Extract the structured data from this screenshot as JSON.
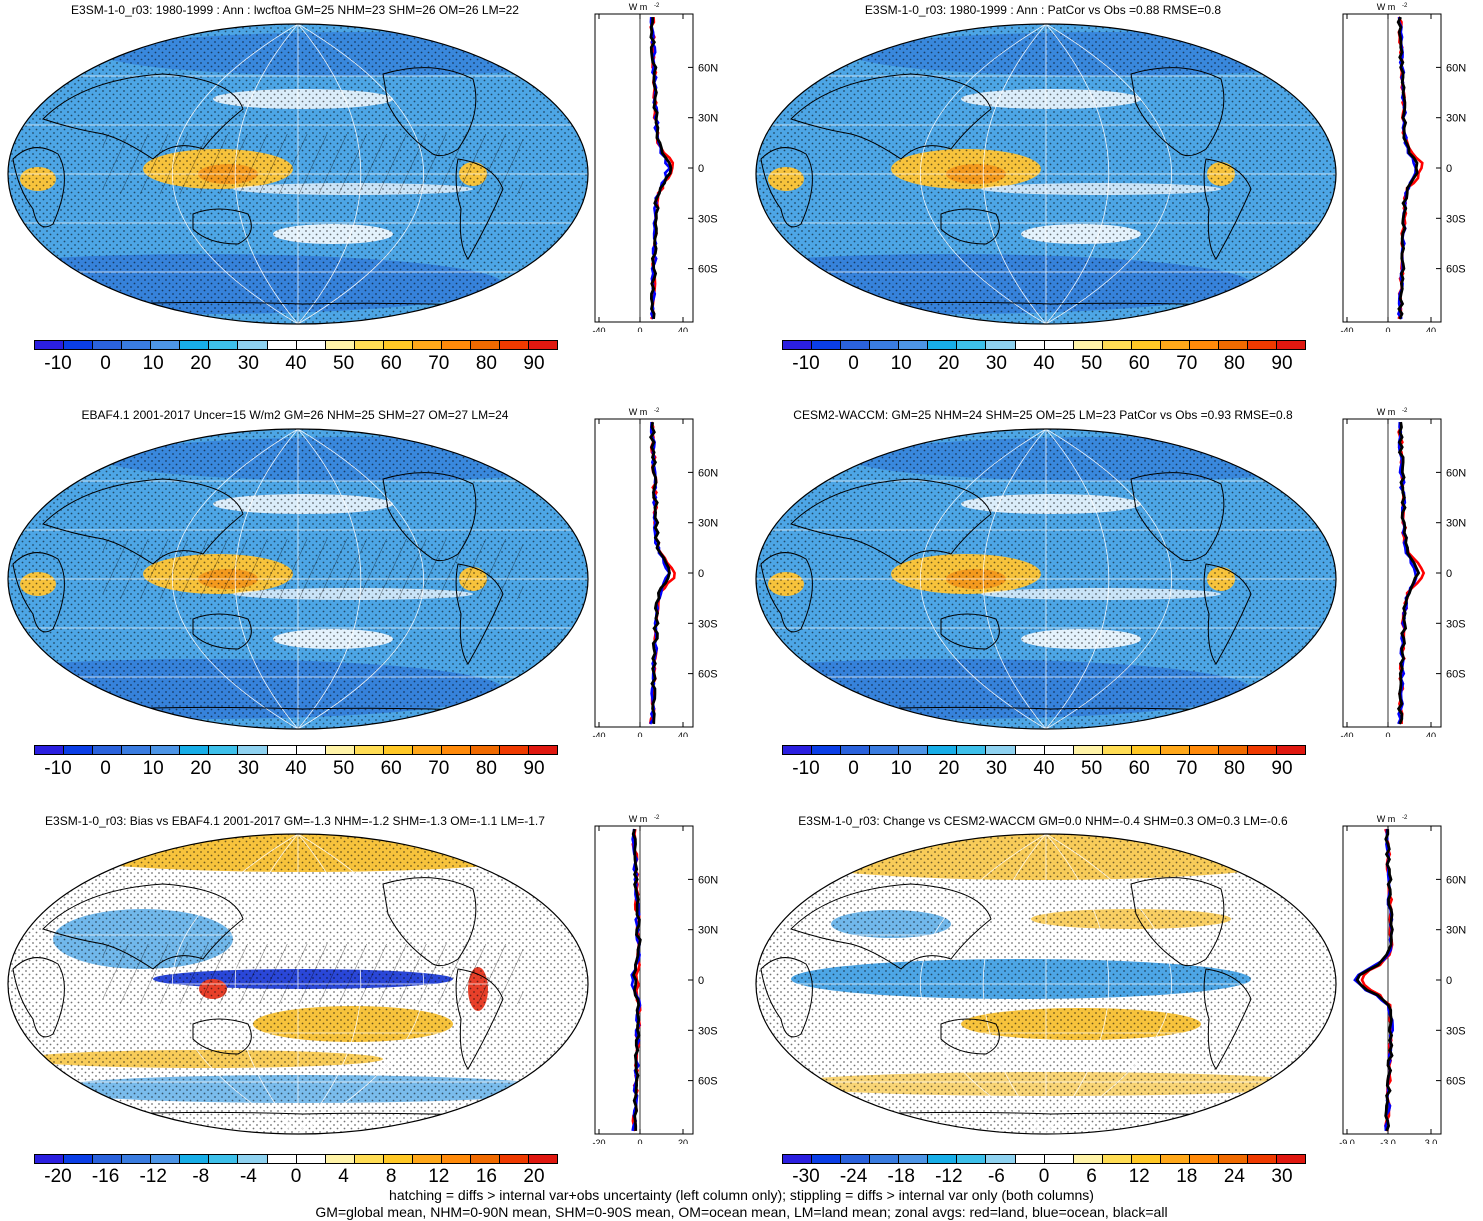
{
  "colors": {
    "ocean_blue": "#4da6e6",
    "deep_blue": "#2a6fd6",
    "warm": "#f7c33c",
    "hot": "#e34a1c",
    "zonal_land": "#ff0000",
    "zonal_ocean": "#0000ff",
    "zonal_all": "#000000"
  },
  "zonal_unit": "W m",
  "zonal_unit_sup": "-2",
  "latitude_labels": [
    "60N",
    "30N",
    "0",
    "30S",
    "60S"
  ],
  "panels": [
    {
      "title": "E3SM-1-0_r03: 1980-1999 : Ann : lwcftoa GM=25 NHM=23 SHM=26 OM=26 LM=22",
      "field": "clim",
      "hatched": true,
      "colorbar_labels": [
        "-10",
        "0",
        "10",
        "20",
        "30",
        "40",
        "50",
        "60",
        "70",
        "80",
        "90"
      ],
      "colorbar_colors": [
        "#2b1fe0",
        "#0b3ee6",
        "#2b62dc",
        "#3a7ce0",
        "#4d95e6",
        "#18aee8",
        "#3ec0ea",
        "#8fd2f0",
        "#ffffff",
        "#ffffff",
        "#fff3a8",
        "#ffdd55",
        "#ffc826",
        "#ffa81a",
        "#ff8a0a",
        "#f06a00",
        "#ef3a00",
        "#e01810"
      ],
      "zonal_xticks": [
        "-40",
        "0",
        "40"
      ]
    },
    {
      "title": "E3SM-1-0_r03: 1980-1999 : Ann : PatCor vs Obs =0.88 RMSE=0.8",
      "field": "clim",
      "hatched": false,
      "colorbar_labels": [
        "-10",
        "0",
        "10",
        "20",
        "30",
        "40",
        "50",
        "60",
        "70",
        "80",
        "90"
      ],
      "colorbar_colors": [
        "#2b1fe0",
        "#0b3ee6",
        "#2b62dc",
        "#3a7ce0",
        "#4d95e6",
        "#18aee8",
        "#3ec0ea",
        "#8fd2f0",
        "#ffffff",
        "#ffffff",
        "#fff3a8",
        "#ffdd55",
        "#ffc826",
        "#ffa81a",
        "#ff8a0a",
        "#f06a00",
        "#ef3a00",
        "#e01810"
      ],
      "zonal_xticks": [
        "-40",
        "0",
        "40"
      ]
    },
    {
      "title": "EBAF4.1 2001-2017 Uncer=15 W/m2 GM=26 NHM=25 SHM=27 OM=27 LM=24",
      "field": "clim",
      "hatched": true,
      "colorbar_labels": [
        "-10",
        "0",
        "10",
        "20",
        "30",
        "40",
        "50",
        "60",
        "70",
        "80",
        "90"
      ],
      "colorbar_colors": [
        "#2b1fe0",
        "#0b3ee6",
        "#2b62dc",
        "#3a7ce0",
        "#4d95e6",
        "#18aee8",
        "#3ec0ea",
        "#8fd2f0",
        "#ffffff",
        "#ffffff",
        "#fff3a8",
        "#ffdd55",
        "#ffc826",
        "#ffa81a",
        "#ff8a0a",
        "#f06a00",
        "#ef3a00",
        "#e01810"
      ],
      "zonal_xticks": [
        "-40",
        "0",
        "40"
      ]
    },
    {
      "title": "CESM2-WACCM: GM=25 NHM=24 SHM=25 OM=25 LM=23 PatCor vs Obs =0.93 RMSE=0.8",
      "field": "clim",
      "hatched": false,
      "colorbar_labels": [
        "-10",
        "0",
        "10",
        "20",
        "30",
        "40",
        "50",
        "60",
        "70",
        "80",
        "90"
      ],
      "colorbar_colors": [
        "#2b1fe0",
        "#0b3ee6",
        "#2b62dc",
        "#3a7ce0",
        "#4d95e6",
        "#18aee8",
        "#3ec0ea",
        "#8fd2f0",
        "#ffffff",
        "#ffffff",
        "#fff3a8",
        "#ffdd55",
        "#ffc826",
        "#ffa81a",
        "#ff8a0a",
        "#f06a00",
        "#ef3a00",
        "#e01810"
      ],
      "zonal_xticks": [
        "-40",
        "0",
        "40"
      ]
    },
    {
      "title": "E3SM-1-0_r03: Bias vs EBAF4.1 2001-2017 GM=-1.3 NHM=-1.2 SHM=-1.3 OM=-1.1 LM=-1.7",
      "field": "diff",
      "hatched": true,
      "colorbar_labels": [
        "-20",
        "-16",
        "-12",
        "-8",
        "-4",
        "0",
        "4",
        "8",
        "12",
        "16",
        "20"
      ],
      "colorbar_colors": [
        "#2b1fe0",
        "#0b3ee6",
        "#2b62dc",
        "#3a7ce0",
        "#4d95e6",
        "#18aee8",
        "#3ec0ea",
        "#8fd2f0",
        "#ffffff",
        "#ffffff",
        "#fff3a8",
        "#ffdd55",
        "#ffc826",
        "#ffa81a",
        "#ff8a0a",
        "#f06a00",
        "#ef3a00",
        "#e01810"
      ],
      "zonal_xticks": [
        "-20",
        "0",
        "20"
      ]
    },
    {
      "title": "E3SM-1-0_r03: Change vs CESM2-WACCM GM=0.0 NHM=-0.4 SHM=0.3 OM=0.3 LM=-0.6",
      "field": "change",
      "hatched": false,
      "colorbar_labels": [
        "-30",
        "-24",
        "-18",
        "-12",
        "-6",
        "0",
        "6",
        "12",
        "18",
        "24",
        "30"
      ],
      "colorbar_colors": [
        "#2b1fe0",
        "#0b3ee6",
        "#2b62dc",
        "#3a7ce0",
        "#4d95e6",
        "#18aee8",
        "#3ec0ea",
        "#8fd2f0",
        "#ffffff",
        "#ffffff",
        "#fff3a8",
        "#ffdd55",
        "#ffc826",
        "#ffa81a",
        "#ff8a0a",
        "#f06a00",
        "#ef3a00",
        "#e01810"
      ],
      "zonal_xticks": [
        "-9.0",
        "-3.0",
        "3.0"
      ]
    }
  ],
  "footer": {
    "line1": "hatching = diffs > internal var+obs uncertainty (left column only); stippling = diffs > internal var only (both columns)",
    "line2": "GM=global mean, NHM=0-90N mean, SHM=0-90S mean, OM=ocean mean, LM=land mean; zonal avgs: red=land, blue=ocean, black=all"
  }
}
